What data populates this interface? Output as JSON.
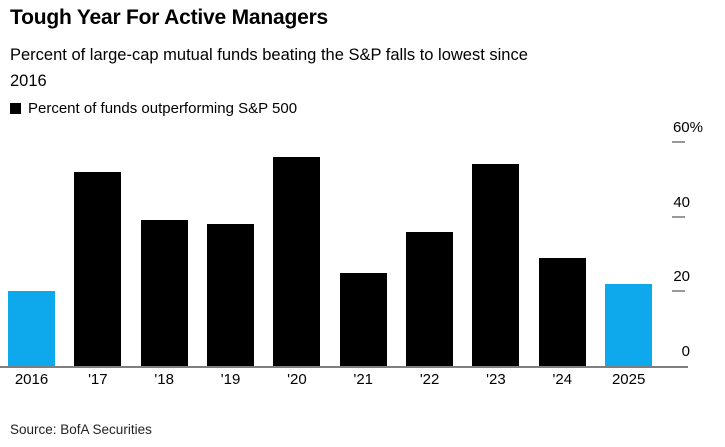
{
  "header": {
    "title": "Tough Year For Active Managers",
    "subtitle_lines": [
      "Percent of large-cap mutual funds beating the S&P falls to lowest since",
      "2016"
    ]
  },
  "legend": {
    "label": "Percent of funds outperforming S&P 500",
    "marker_color": "#000000"
  },
  "chart_data": {
    "type": "bar",
    "title": "Tough Year For Active Managers",
    "subtitle": "Percent of large-cap mutual funds beating the S&P falls to lowest since 2016",
    "series_name": "Percent of funds outperforming S&P 500",
    "categories": [
      "2016",
      "'17",
      "'18",
      "'19",
      "'20",
      "'21",
      "'22",
      "'23",
      "'24",
      "2025"
    ],
    "values": [
      20,
      52,
      39,
      38,
      56,
      25,
      36,
      54,
      29,
      22
    ],
    "unit": "%",
    "ylim": [
      0,
      60
    ],
    "yticks": [
      0,
      20,
      40,
      60
    ],
    "ytick_labels": [
      "0",
      "20",
      "40",
      "60%"
    ],
    "y_axis_side": "right",
    "grid": false,
    "legend_position": "top-left",
    "bar_color": "#000000",
    "highlight_color": "#0da9ec",
    "bar_colors": [
      "#0da9ec",
      "#000000",
      "#000000",
      "#000000",
      "#000000",
      "#000000",
      "#000000",
      "#000000",
      "#000000",
      "#0da9ec"
    ],
    "axis_color": "#7f7f7f",
    "tick_color": "#999999"
  },
  "footer": {
    "source": "Source: BofA Securities"
  }
}
